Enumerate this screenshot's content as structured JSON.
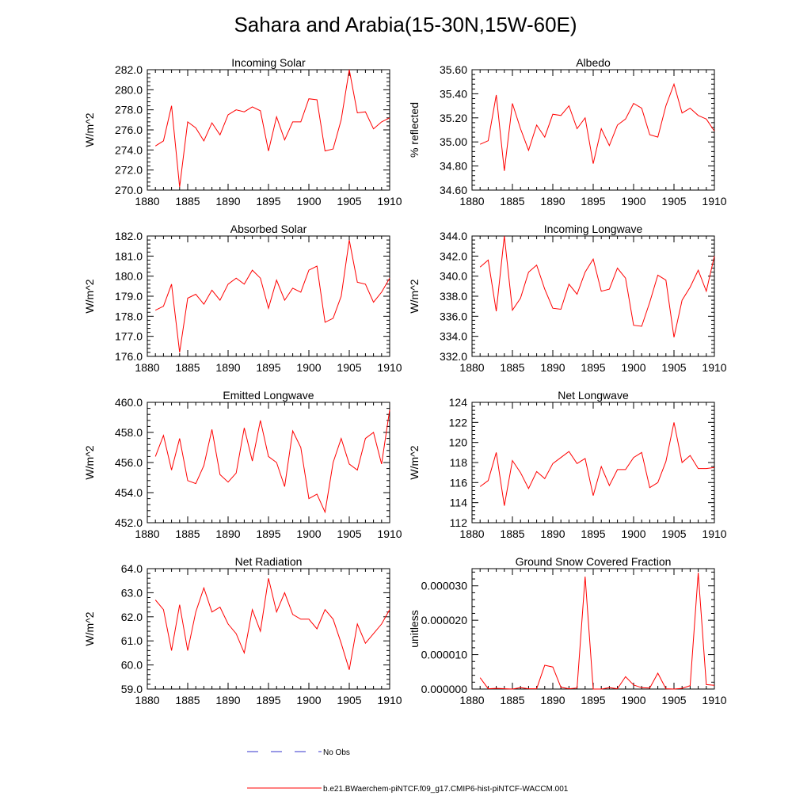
{
  "title": "Sahara and Arabia(15-30N,15W-60E)",
  "legend": {
    "entries": [
      {
        "label": "No Obs",
        "color": "#3333cc",
        "style": "dashed"
      },
      {
        "label": "b.e21.BWaerchem-piNTCF.f09_g17.CMIP6-hist-piNTCF-WACCM.001",
        "color": "#ff0000",
        "style": "solid"
      }
    ]
  },
  "chart_data": [
    {
      "type": "line",
      "title": "Incoming Solar",
      "ylabel": "W/m^2",
      "ylim": [
        270,
        282
      ],
      "yticks": [
        270,
        272,
        274,
        276,
        278,
        280,
        282
      ],
      "yticklabels": [
        "270.0",
        "272.0",
        "274.0",
        "276.0",
        "278.0",
        "280.0",
        "282.0"
      ],
      "xlim": [
        1880,
        1910
      ],
      "xticks": [
        1880,
        1885,
        1890,
        1895,
        1900,
        1905,
        1910
      ],
      "xticklabels": [
        "1880",
        "1885",
        "1890",
        "1895",
        "1900",
        "1905",
        "1910"
      ],
      "x": [
        1881,
        1882,
        1883,
        1884,
        1885,
        1886,
        1887,
        1888,
        1889,
        1890,
        1891,
        1892,
        1893,
        1894,
        1895,
        1896,
        1897,
        1898,
        1899,
        1900,
        1901,
        1902,
        1903,
        1904,
        1905,
        1906,
        1907,
        1908,
        1909,
        1910
      ],
      "series": [
        {
          "color": "#ff0000",
          "values": [
            274.4,
            274.9,
            278.4,
            270.3,
            276.8,
            276.2,
            274.9,
            276.7,
            275.5,
            277.5,
            278.0,
            277.8,
            278.3,
            277.9,
            273.9,
            277.3,
            275.0,
            276.8,
            276.8,
            279.1,
            279.0,
            273.9,
            274.1,
            277.0,
            282.0,
            277.7,
            277.8,
            276.1,
            276.8,
            277.2
          ]
        }
      ]
    },
    {
      "type": "line",
      "title": "Albedo",
      "ylabel": "% reflected",
      "ylim": [
        34.6,
        35.6
      ],
      "yticks": [
        34.6,
        34.8,
        35.0,
        35.2,
        35.4,
        35.6
      ],
      "yticklabels": [
        "34.60",
        "34.80",
        "35.00",
        "35.20",
        "35.40",
        "35.60"
      ],
      "xlim": [
        1880,
        1910
      ],
      "xticks": [
        1880,
        1885,
        1890,
        1895,
        1900,
        1905,
        1910
      ],
      "xticklabels": [
        "1880",
        "1885",
        "1890",
        "1895",
        "1900",
        "1905",
        "1910"
      ],
      "x": [
        1881,
        1882,
        1883,
        1884,
        1885,
        1886,
        1887,
        1888,
        1889,
        1890,
        1891,
        1892,
        1893,
        1894,
        1895,
        1896,
        1897,
        1898,
        1899,
        1900,
        1901,
        1902,
        1903,
        1904,
        1905,
        1906,
        1907,
        1908,
        1909,
        1910
      ],
      "series": [
        {
          "color": "#ff0000",
          "values": [
            34.98,
            35.01,
            35.39,
            34.76,
            35.32,
            35.11,
            34.93,
            35.14,
            35.04,
            35.23,
            35.22,
            35.3,
            35.11,
            35.2,
            34.82,
            35.11,
            34.97,
            35.14,
            35.19,
            35.32,
            35.28,
            35.06,
            35.04,
            35.3,
            35.48,
            35.24,
            35.28,
            35.22,
            35.19,
            35.09
          ]
        }
      ]
    },
    {
      "type": "line",
      "title": "Absorbed Solar",
      "ylabel": "W/m^2",
      "ylim": [
        176,
        182
      ],
      "yticks": [
        176,
        177,
        178,
        179,
        180,
        181,
        182
      ],
      "yticklabels": [
        "176.0",
        "177.0",
        "178.0",
        "179.0",
        "180.0",
        "181.0",
        "182.0"
      ],
      "xlim": [
        1880,
        1910
      ],
      "xticks": [
        1880,
        1885,
        1890,
        1895,
        1900,
        1905,
        1910
      ],
      "xticklabels": [
        "1880",
        "1885",
        "1890",
        "1895",
        "1900",
        "1905",
        "1910"
      ],
      "x": [
        1881,
        1882,
        1883,
        1884,
        1885,
        1886,
        1887,
        1888,
        1889,
        1890,
        1891,
        1892,
        1893,
        1894,
        1895,
        1896,
        1897,
        1898,
        1899,
        1900,
        1901,
        1902,
        1903,
        1904,
        1905,
        1906,
        1907,
        1908,
        1909,
        1910
      ],
      "series": [
        {
          "color": "#ff0000",
          "values": [
            178.3,
            178.5,
            179.6,
            176.2,
            178.9,
            179.1,
            178.6,
            179.3,
            178.8,
            179.6,
            179.9,
            179.6,
            180.3,
            179.9,
            178.4,
            179.8,
            178.8,
            179.4,
            179.2,
            180.3,
            180.5,
            177.7,
            177.9,
            179.0,
            181.8,
            179.7,
            179.6,
            178.7,
            179.2,
            179.9
          ]
        }
      ]
    },
    {
      "type": "line",
      "title": "Incoming Longwave",
      "ylabel": "W/m^2",
      "ylim": [
        332,
        344
      ],
      "yticks": [
        332,
        334,
        336,
        338,
        340,
        342,
        344
      ],
      "yticklabels": [
        "332.0",
        "334.0",
        "336.0",
        "338.0",
        "340.0",
        "342.0",
        "344.0"
      ],
      "xlim": [
        1880,
        1910
      ],
      "xticks": [
        1880,
        1885,
        1890,
        1895,
        1900,
        1905,
        1910
      ],
      "xticklabels": [
        "1880",
        "1885",
        "1890",
        "1895",
        "1900",
        "1905",
        "1910"
      ],
      "x": [
        1881,
        1882,
        1883,
        1884,
        1885,
        1886,
        1887,
        1888,
        1889,
        1890,
        1891,
        1892,
        1893,
        1894,
        1895,
        1896,
        1897,
        1898,
        1899,
        1900,
        1901,
        1902,
        1903,
        1904,
        1905,
        1906,
        1907,
        1908,
        1909,
        1910
      ],
      "series": [
        {
          "color": "#ff0000",
          "values": [
            340.9,
            341.6,
            336.5,
            344.0,
            336.6,
            337.8,
            340.4,
            341.1,
            338.7,
            336.8,
            336.7,
            339.2,
            338.2,
            340.4,
            341.7,
            338.5,
            338.7,
            340.8,
            339.8,
            335.1,
            335.0,
            337.4,
            340.1,
            339.6,
            333.9,
            337.6,
            338.9,
            340.6,
            338.5,
            342.0
          ]
        }
      ]
    },
    {
      "type": "line",
      "title": "Emitted Longwave",
      "ylabel": "W/m^2",
      "ylim": [
        452,
        460
      ],
      "yticks": [
        452,
        454,
        456,
        458,
        460
      ],
      "yticklabels": [
        "452.0",
        "454.0",
        "456.0",
        "458.0",
        "460.0"
      ],
      "xlim": [
        1880,
        1910
      ],
      "xticks": [
        1880,
        1885,
        1890,
        1895,
        1900,
        1905,
        1910
      ],
      "xticklabels": [
        "1880",
        "1885",
        "1890",
        "1895",
        "1900",
        "1905",
        "1910"
      ],
      "x": [
        1881,
        1882,
        1883,
        1884,
        1885,
        1886,
        1887,
        1888,
        1889,
        1890,
        1891,
        1892,
        1893,
        1894,
        1895,
        1896,
        1897,
        1898,
        1899,
        1900,
        1901,
        1902,
        1903,
        1904,
        1905,
        1906,
        1907,
        1908,
        1909,
        1910
      ],
      "series": [
        {
          "color": "#ff0000",
          "values": [
            456.4,
            457.8,
            455.5,
            457.6,
            454.8,
            454.6,
            455.8,
            458.2,
            455.2,
            454.7,
            455.3,
            458.3,
            456.1,
            458.8,
            456.4,
            456.0,
            454.4,
            458.1,
            457.0,
            453.6,
            453.9,
            452.7,
            456.0,
            457.6,
            455.9,
            455.5,
            457.6,
            458.0,
            455.9,
            459.5
          ]
        }
      ]
    },
    {
      "type": "line",
      "title": "Net Longwave",
      "ylabel": "W/m^2",
      "ylim": [
        112,
        124
      ],
      "yticks": [
        112,
        114,
        116,
        118,
        120,
        122,
        124
      ],
      "yticklabels": [
        "112",
        "114",
        "116",
        "118",
        "120",
        "122",
        "124"
      ],
      "xlim": [
        1880,
        1910
      ],
      "xticks": [
        1880,
        1885,
        1890,
        1895,
        1900,
        1905,
        1910
      ],
      "xticklabels": [
        "1880",
        "1885",
        "1890",
        "1895",
        "1900",
        "1905",
        "1910"
      ],
      "x": [
        1881,
        1882,
        1883,
        1884,
        1885,
        1886,
        1887,
        1888,
        1889,
        1890,
        1891,
        1892,
        1893,
        1894,
        1895,
        1896,
        1897,
        1898,
        1899,
        1900,
        1901,
        1902,
        1903,
        1904,
        1905,
        1906,
        1907,
        1908,
        1909,
        1910
      ],
      "series": [
        {
          "color": "#ff0000",
          "values": [
            115.6,
            116.2,
            119.0,
            113.7,
            118.2,
            117.0,
            115.4,
            117.1,
            116.4,
            117.9,
            118.5,
            119.1,
            117.9,
            118.4,
            114.7,
            117.6,
            115.7,
            117.3,
            117.3,
            118.5,
            119.0,
            115.5,
            116.0,
            118.1,
            122.0,
            118.0,
            118.7,
            117.4,
            117.4,
            117.5
          ]
        }
      ]
    },
    {
      "type": "line",
      "title": "Net Radiation",
      "ylabel": "W/m^2",
      "ylim": [
        59,
        64
      ],
      "yticks": [
        59,
        60,
        61,
        62,
        63,
        64
      ],
      "yticklabels": [
        "59.0",
        "60.0",
        "61.0",
        "62.0",
        "63.0",
        "64.0"
      ],
      "xlim": [
        1880,
        1910
      ],
      "xticks": [
        1880,
        1885,
        1890,
        1895,
        1900,
        1905,
        1910
      ],
      "xticklabels": [
        "1880",
        "1885",
        "1890",
        "1895",
        "1900",
        "1905",
        "1910"
      ],
      "x": [
        1881,
        1882,
        1883,
        1884,
        1885,
        1886,
        1887,
        1888,
        1889,
        1890,
        1891,
        1892,
        1893,
        1894,
        1895,
        1896,
        1897,
        1898,
        1899,
        1900,
        1901,
        1902,
        1903,
        1904,
        1905,
        1906,
        1907,
        1908,
        1909,
        1910
      ],
      "series": [
        {
          "color": "#ff0000",
          "values": [
            62.7,
            62.3,
            60.6,
            62.5,
            60.6,
            62.2,
            63.2,
            62.2,
            62.4,
            61.7,
            61.3,
            60.5,
            62.3,
            61.4,
            63.6,
            62.2,
            63.0,
            62.1,
            61.9,
            61.9,
            61.5,
            62.3,
            61.9,
            60.9,
            59.8,
            61.7,
            60.9,
            61.3,
            61.7,
            62.3
          ]
        }
      ]
    },
    {
      "type": "line",
      "title": "Ground Snow Covered Fraction",
      "ylabel": "unitless",
      "ylim": [
        0,
        3.5e-05
      ],
      "yticks": [
        0,
        1e-05,
        2e-05,
        3e-05
      ],
      "yticklabels": [
        "0.000000",
        "0.000010",
        "0.000020",
        "0.000030"
      ],
      "xlim": [
        1880,
        1910
      ],
      "xticks": [
        1880,
        1885,
        1890,
        1895,
        1900,
        1905,
        1910
      ],
      "xticklabels": [
        "1880",
        "1885",
        "1890",
        "1895",
        "1900",
        "1905",
        "1910"
      ],
      "x": [
        1881,
        1882,
        1883,
        1884,
        1885,
        1886,
        1887,
        1888,
        1889,
        1890,
        1891,
        1892,
        1893,
        1894,
        1895,
        1896,
        1897,
        1898,
        1899,
        1900,
        1901,
        1902,
        1903,
        1904,
        1905,
        1906,
        1907,
        1908,
        1909,
        1910
      ],
      "series": [
        {
          "color": "#ff0000",
          "values": [
            3.3e-06,
            1e-07,
            2e-07,
            1e-07,
            0,
            4e-07,
            1e-07,
            1e-07,
            6.9e-06,
            6.4e-06,
            5e-07,
            1e-07,
            3e-07,
            3.27e-05,
            0,
            0,
            4e-07,
            1e-07,
            3.6e-06,
            1.2e-06,
            4e-07,
            3e-07,
            4.6e-06,
            1e-07,
            0,
            2e-07,
            1e-06,
            3.38e-05,
            1.3e-06,
            1.1e-06
          ]
        }
      ]
    }
  ]
}
